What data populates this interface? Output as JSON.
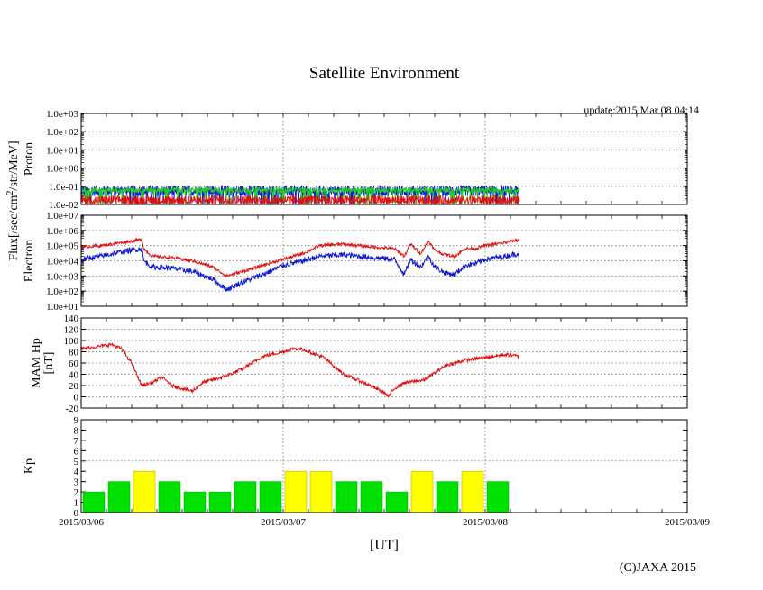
{
  "title": "Satellite Environment",
  "update_text": "update:2015 Mar 08 04:14",
  "copyright": "(C)JAXA 2015",
  "x_axis": {
    "label": "[UT]",
    "range_days": [
      0,
      3
    ],
    "ticks": [
      "2015/03/06",
      "2015/03/07",
      "2015/03/08",
      "2015/03/09"
    ],
    "data_end_day": 2.17
  },
  "colors": {
    "red": "#e01010",
    "blue": "#1018d0",
    "green": "#20d020",
    "yellow": "#ffff00",
    "kp_green": "#00e000",
    "kp_line": "#b8b000"
  },
  "chart_data": [
    {
      "name": "proton",
      "type": "line",
      "ylabel": "Proton",
      "scale": "log",
      "ylim_exp": [
        -2,
        3
      ],
      "yticks": [
        "1.0e-02",
        "1.0e-01",
        "1.0e+00",
        "1.0e+01",
        "1.0e+02",
        "1.0e+03"
      ],
      "grid": "dotted",
      "series": [
        {
          "color": "#1018d0",
          "level_exp": -1.25,
          "noise": 0.3
        },
        {
          "color": "#20d020",
          "level_exp": -1.2,
          "noise": 0.15
        },
        {
          "color": "#e01010",
          "level_exp": -1.75,
          "noise": 0.25
        }
      ]
    },
    {
      "name": "electron",
      "type": "line",
      "ylabel": "Electron",
      "shared_ylabel": "Flux[/sec/cm2/str/MeV]",
      "scale": "log",
      "ylim_exp": [
        1,
        7
      ],
      "yticks": [
        "1.0e+01",
        "1.0e+02",
        "1.0e+03",
        "1.0e+04",
        "1.0e+05",
        "1.0e+06",
        "1.0e+07"
      ],
      "grid": "dotted",
      "series": [
        {
          "color": "#e01010",
          "x": [
            0,
            0.1,
            0.2,
            0.3,
            0.31,
            0.35,
            0.45,
            0.55,
            0.65,
            0.72,
            0.8,
            0.9,
            1.0,
            1.1,
            1.18,
            1.3,
            1.45,
            1.55,
            1.6,
            1.63,
            1.68,
            1.72,
            1.75,
            1.8,
            1.85,
            1.9,
            1.95,
            2.0,
            2.1,
            2.17
          ],
          "y_exp": [
            4.9,
            5.0,
            5.2,
            5.4,
            4.8,
            4.3,
            4.2,
            4.0,
            3.6,
            3.0,
            3.3,
            3.7,
            4.1,
            4.5,
            5.0,
            5.1,
            4.9,
            4.8,
            4.3,
            5.1,
            4.5,
            5.3,
            4.7,
            4.4,
            4.3,
            4.8,
            4.8,
            5.0,
            5.2,
            5.4
          ],
          "noise": 0.1
        },
        {
          "color": "#1018d0",
          "x": [
            0,
            0.1,
            0.2,
            0.3,
            0.31,
            0.35,
            0.45,
            0.55,
            0.65,
            0.72,
            0.8,
            0.9,
            1.0,
            1.1,
            1.18,
            1.3,
            1.45,
            1.55,
            1.6,
            1.63,
            1.68,
            1.72,
            1.75,
            1.8,
            1.85,
            1.9,
            1.95,
            2.0,
            2.1,
            2.17
          ],
          "y_exp": [
            4.1,
            4.3,
            4.6,
            4.8,
            4.0,
            3.6,
            3.5,
            3.3,
            2.8,
            2.1,
            2.6,
            3.1,
            3.7,
            4.0,
            4.3,
            4.4,
            4.2,
            4.1,
            3.1,
            4.1,
            3.6,
            4.3,
            3.6,
            3.2,
            3.1,
            3.7,
            3.8,
            4.1,
            4.3,
            4.5
          ],
          "noise": 0.18
        }
      ]
    },
    {
      "name": "mam-hp",
      "type": "line",
      "ylabel": "MAM Hp",
      "ylabel2": "[nT]",
      "scale": "linear",
      "ylim": [
        -20,
        140
      ],
      "yticks": [
        "-20",
        "0",
        "20",
        "40",
        "60",
        "80",
        "100",
        "120",
        "140"
      ],
      "grid": "dotted",
      "series": [
        {
          "color": "#e01010",
          "x": [
            0,
            0.1,
            0.15,
            0.2,
            0.25,
            0.3,
            0.35,
            0.4,
            0.45,
            0.5,
            0.55,
            0.6,
            0.7,
            0.75,
            0.8,
            0.9,
            1.0,
            1.05,
            1.1,
            1.2,
            1.3,
            1.4,
            1.5,
            1.52,
            1.55,
            1.6,
            1.7,
            1.8,
            1.9,
            2.0,
            2.1,
            2.17
          ],
          "y": [
            85,
            90,
            93,
            85,
            60,
            20,
            25,
            35,
            20,
            15,
            10,
            25,
            35,
            42,
            50,
            72,
            80,
            86,
            84,
            70,
            40,
            25,
            8,
            0,
            15,
            25,
            30,
            55,
            65,
            70,
            75,
            72
          ],
          "noise": 3
        }
      ]
    },
    {
      "name": "kp",
      "type": "bar",
      "ylabel": "Kp",
      "ylim": [
        0,
        9
      ],
      "yticks": [
        "0",
        "1",
        "2",
        "3",
        "4",
        "5",
        "6",
        "7",
        "8",
        "9"
      ],
      "grid_line": 5,
      "bin_days": 0.125,
      "values": [
        2,
        3,
        4,
        3,
        2,
        2,
        3,
        3,
        4,
        4,
        3,
        3,
        2,
        4,
        3,
        4,
        3
      ],
      "yellow_threshold": 4
    }
  ]
}
